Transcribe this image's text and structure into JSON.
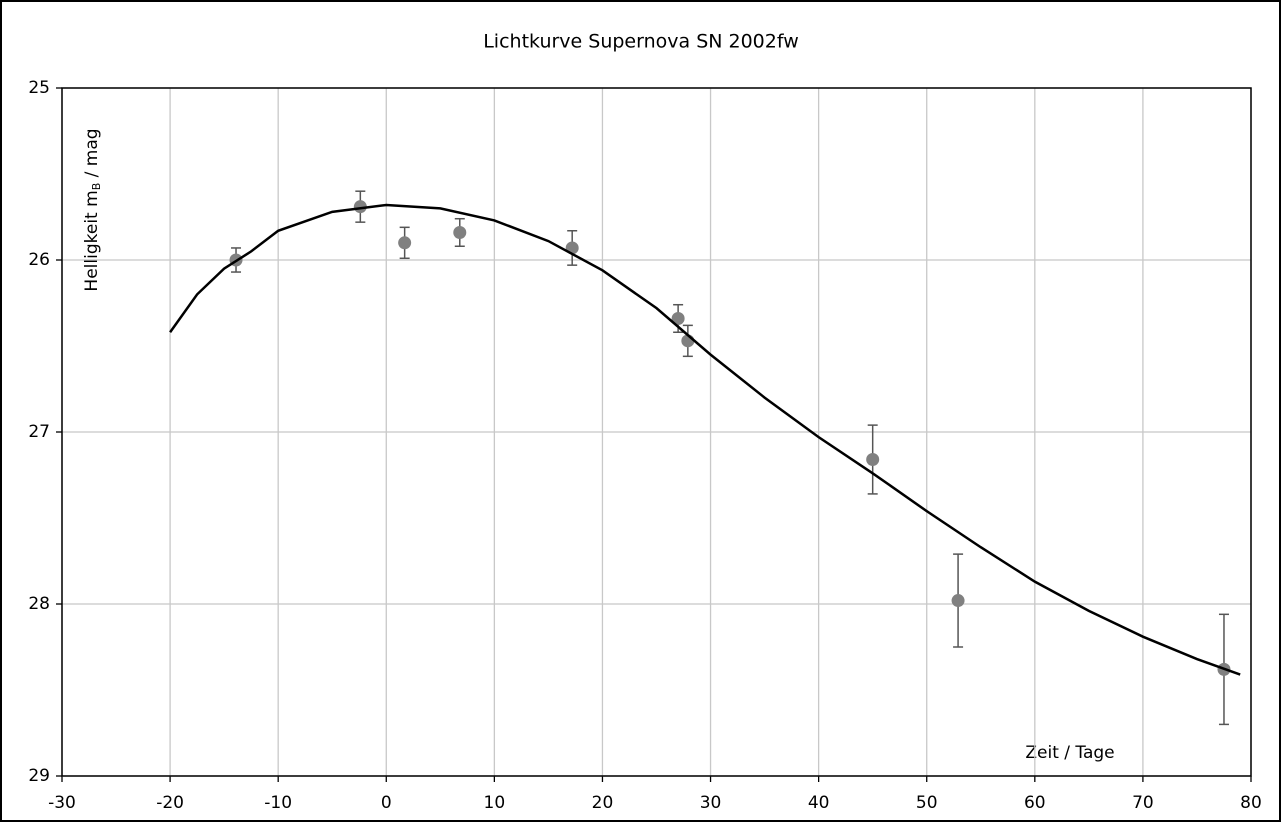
{
  "chart_data": {
    "type": "scatter",
    "title": "Lichtkurve Supernova SN 2002fw",
    "y_label": "Helligkeit  m",
    "y_label_subscript": "B",
    "y_label_suffix": " / mag",
    "x_label": "Zeit / Tage",
    "xlim": [
      -30,
      80
    ],
    "xticks": [
      -30,
      -20,
      -10,
      0,
      10,
      20,
      30,
      40,
      50,
      60,
      70,
      80
    ],
    "ylim": [
      25,
      29
    ],
    "yticks": [
      25,
      26,
      27,
      28,
      29
    ],
    "y_inverted": true,
    "grid": true,
    "series": [
      {
        "color": "#808080",
        "x": [
          -13.9,
          -2.4,
          1.7,
          6.8,
          17.2,
          27.0,
          27.9,
          45.0,
          52.9,
          77.5
        ],
        "values": [
          26.0,
          25.69,
          25.9,
          25.84,
          25.93,
          26.34,
          26.47,
          27.16,
          27.98,
          28.38
        ],
        "errors": [
          0.07,
          0.09,
          0.09,
          0.08,
          0.1,
          0.08,
          0.09,
          0.2,
          0.27,
          0.32
        ],
        "error_color": "#555555"
      },
      {
        "color": "#000000",
        "line": true,
        "x": [
          -20,
          -17.5,
          -15,
          -12.5,
          -10,
          -5,
          0,
          5,
          10,
          15,
          20,
          25,
          30,
          35,
          40,
          45,
          50,
          55,
          60,
          65,
          70,
          75,
          79
        ],
        "values": [
          26.42,
          26.2,
          26.05,
          25.95,
          25.83,
          25.72,
          25.68,
          25.7,
          25.77,
          25.89,
          26.06,
          26.28,
          26.55,
          26.8,
          27.03,
          27.24,
          27.46,
          27.67,
          27.87,
          28.04,
          28.19,
          28.32,
          28.41
        ]
      }
    ]
  }
}
